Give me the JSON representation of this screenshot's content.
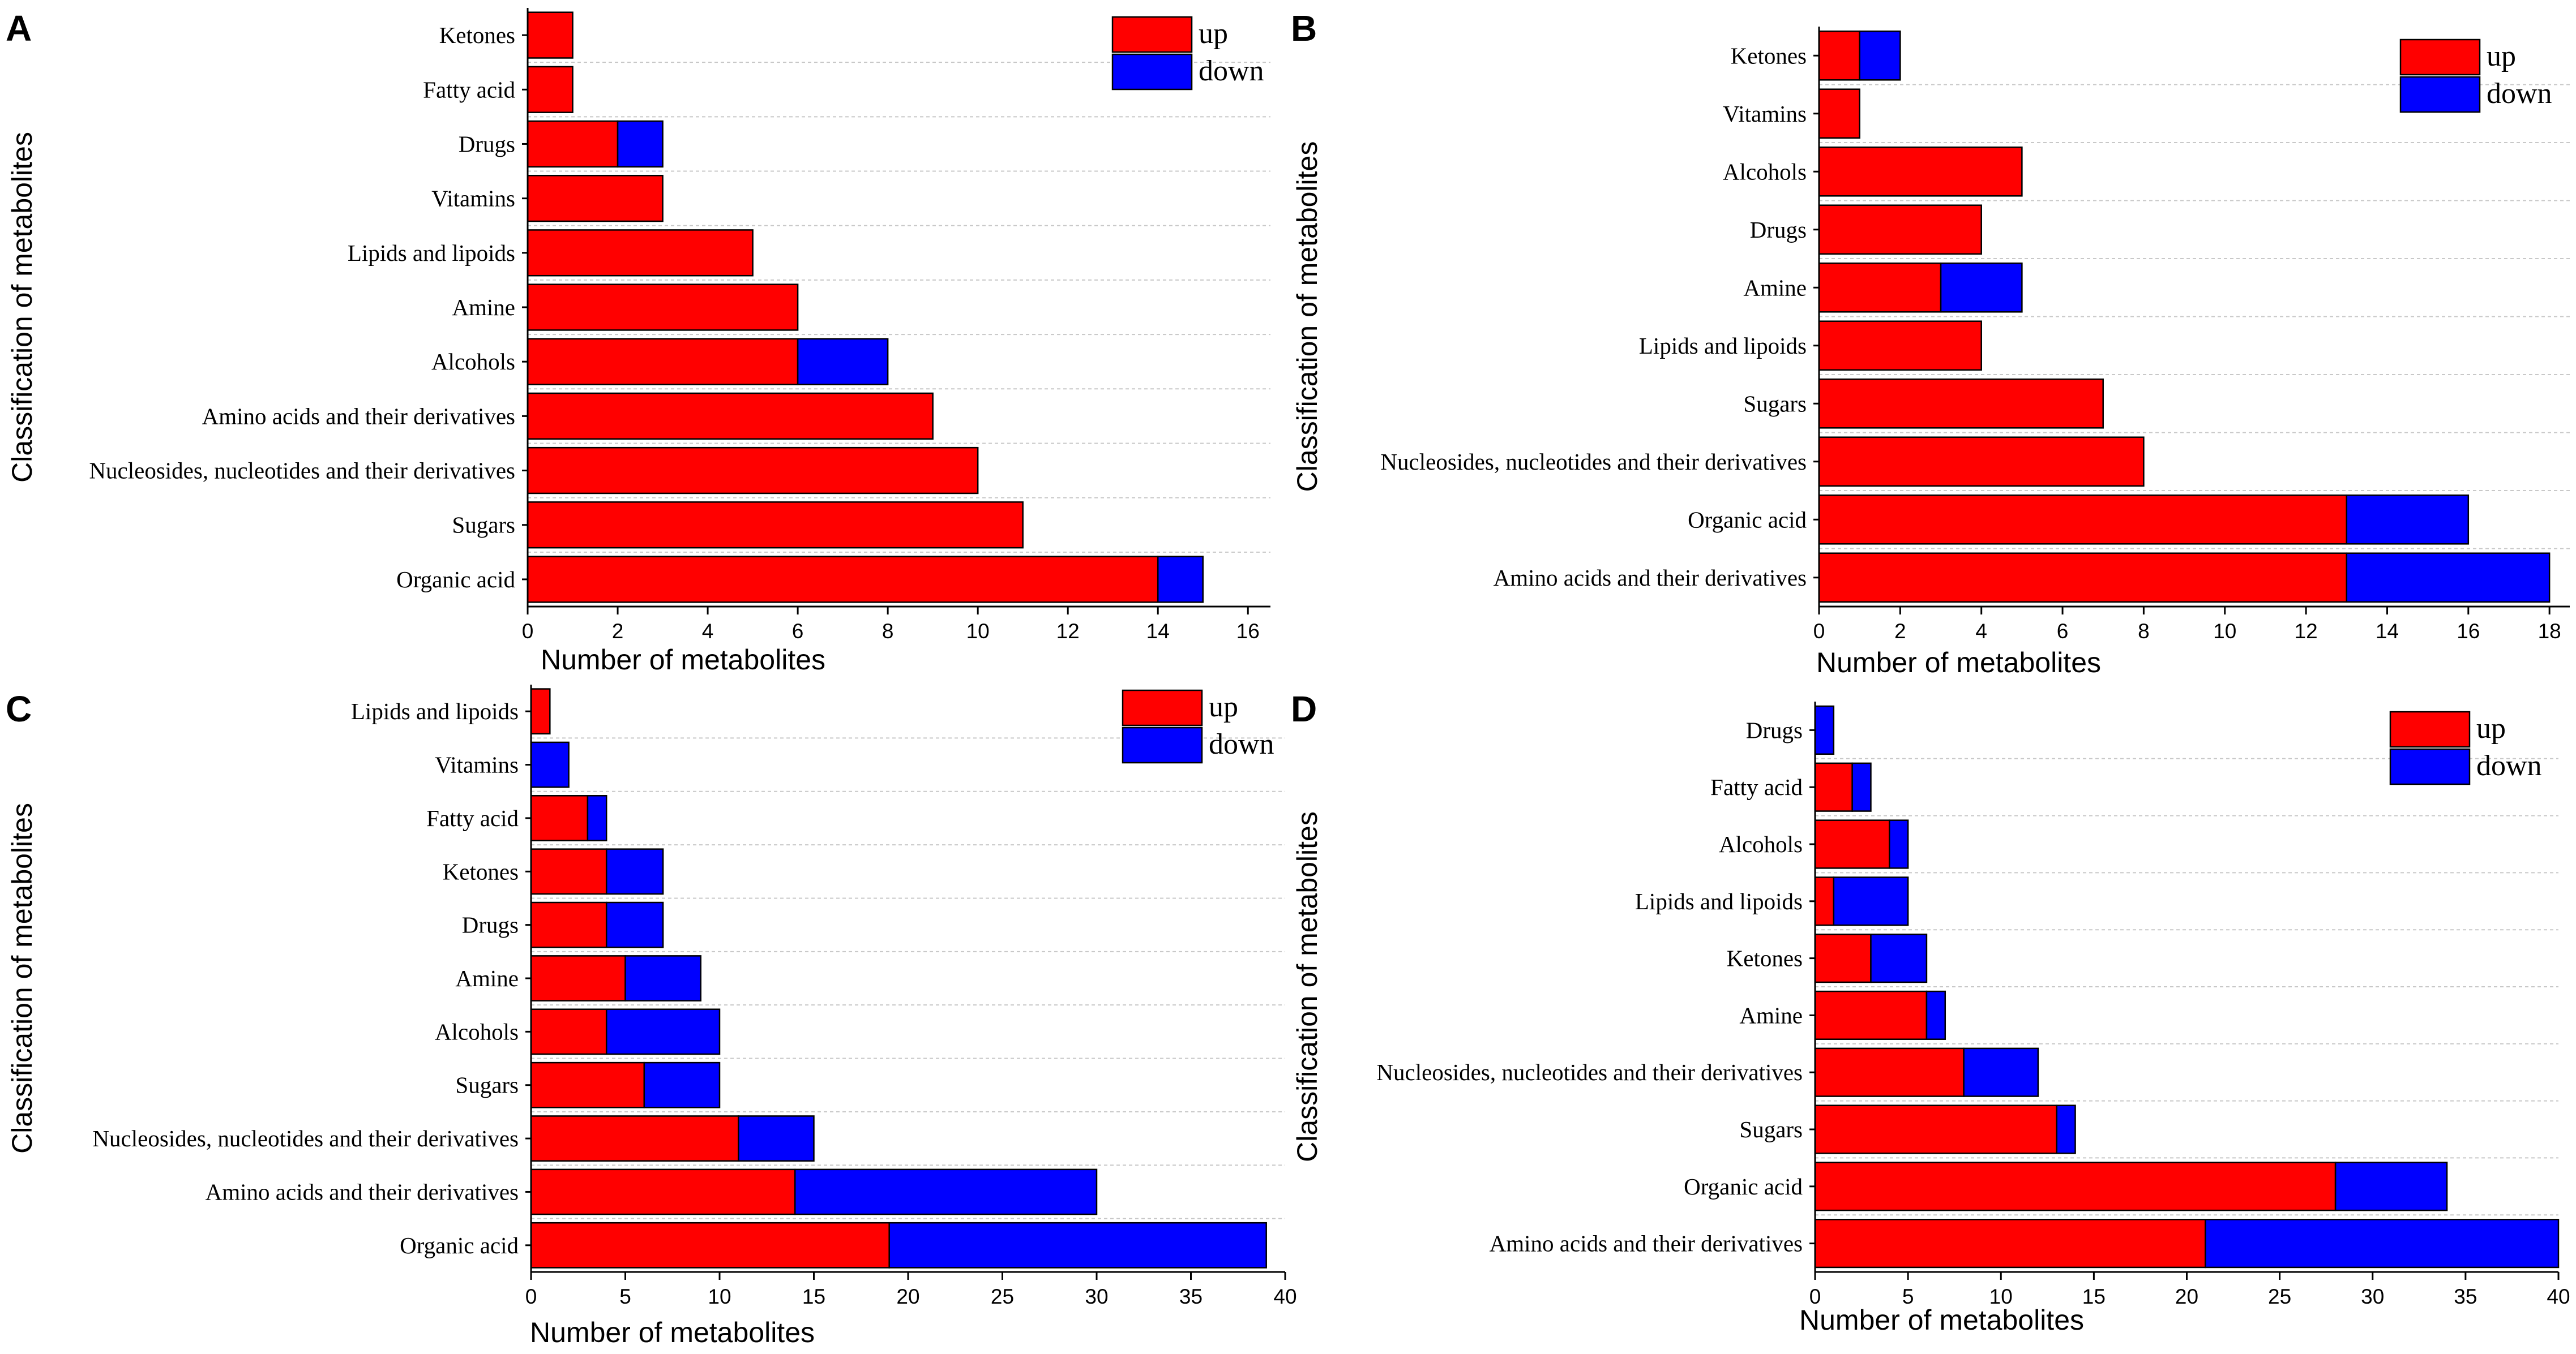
{
  "colors": {
    "up": "#ff0000",
    "down": "#0000ff",
    "grid": "#c8c8c8",
    "axis": "#000000"
  },
  "chart_data": [
    {
      "panel": "A",
      "type": "bar",
      "orientation": "horizontal",
      "stacked": true,
      "xlabel": "Number of metabolites",
      "ylabel": "Classification of metabolites",
      "xlim": [
        0,
        16.5
      ],
      "xticks": [
        0,
        2,
        4,
        6,
        8,
        10,
        12,
        14,
        16
      ],
      "legend": [
        "up",
        "down"
      ],
      "legend_position": "top-right",
      "categories": [
        "Ketones",
        "Fatty acid",
        "Drugs",
        "Vitamins",
        "Lipids and lipoids",
        "Amine",
        "Alcohols",
        "Amino acids and their derivatives",
        "Nucleosides, nucleotides and their derivatives",
        "Sugars",
        "Organic acid"
      ],
      "series": [
        {
          "name": "up",
          "values": [
            1,
            1,
            2,
            3,
            5,
            6,
            6,
            9,
            10,
            11,
            14
          ]
        },
        {
          "name": "down",
          "values": [
            0,
            0,
            1,
            0,
            0,
            0,
            2,
            0,
            0,
            0,
            1
          ]
        }
      ]
    },
    {
      "panel": "B",
      "type": "bar",
      "orientation": "horizontal",
      "stacked": true,
      "xlabel": "Number of metabolites",
      "ylabel": "Classification of metabolites",
      "xlim": [
        0,
        18.5
      ],
      "xticks": [
        0,
        2,
        4,
        6,
        8,
        10,
        12,
        14,
        16,
        18
      ],
      "legend": [
        "up",
        "down"
      ],
      "legend_position": "top-right",
      "categories": [
        "Ketones",
        "Vitamins",
        "Alcohols",
        "Drugs",
        "Amine",
        "Lipids and lipoids",
        "Sugars",
        "Nucleosides, nucleotides and their derivatives",
        "Organic acid",
        "Amino acids and their derivatives"
      ],
      "series": [
        {
          "name": "up",
          "values": [
            1,
            1,
            5,
            4,
            3,
            4,
            7,
            8,
            13,
            13
          ]
        },
        {
          "name": "down",
          "values": [
            1,
            0,
            0,
            0,
            2,
            0,
            0,
            0,
            3,
            5
          ]
        }
      ]
    },
    {
      "panel": "C",
      "type": "bar",
      "orientation": "horizontal",
      "stacked": true,
      "xlabel": "Number of metabolites",
      "ylabel": "Classification of metabolites",
      "xlim": [
        0,
        40
      ],
      "xticks": [
        0,
        5,
        10,
        15,
        20,
        25,
        30,
        35,
        40
      ],
      "legend": [
        "up",
        "down"
      ],
      "legend_position": "top-right",
      "categories": [
        "Lipids and lipoids",
        "Vitamins",
        "Fatty acid",
        "Ketones",
        "Drugs",
        "Amine",
        "Alcohols",
        "Sugars",
        "Nucleosides, nucleotides and their derivatives",
        "Amino acids and their derivatives",
        "Organic acid"
      ],
      "series": [
        {
          "name": "up",
          "values": [
            1,
            0,
            3,
            4,
            4,
            5,
            4,
            6,
            11,
            14,
            19
          ]
        },
        {
          "name": "down",
          "values": [
            0,
            2,
            1,
            3,
            3,
            4,
            6,
            4,
            4,
            16,
            20
          ]
        }
      ]
    },
    {
      "panel": "D",
      "type": "bar",
      "orientation": "horizontal",
      "stacked": true,
      "xlabel": "Number of metabolites",
      "ylabel": "Classification of metabolites",
      "xlim": [
        0,
        40
      ],
      "xticks": [
        0,
        5,
        10,
        15,
        20,
        25,
        30,
        35,
        40
      ],
      "legend": [
        "up",
        "down"
      ],
      "legend_position": "top-right",
      "categories": [
        "Drugs",
        "Fatty acid",
        "Alcohols",
        "Lipids and lipoids",
        "Ketones",
        "Amine",
        "Nucleosides, nucleotides and their derivatives",
        "Sugars",
        "Organic acid",
        "Amino acids and their derivatives"
      ],
      "series": [
        {
          "name": "up",
          "values": [
            0,
            2,
            4,
            1,
            3,
            6,
            8,
            13,
            28,
            21
          ]
        },
        {
          "name": "down",
          "values": [
            1,
            1,
            1,
            4,
            3,
            1,
            4,
            1,
            6,
            19
          ]
        }
      ]
    }
  ]
}
